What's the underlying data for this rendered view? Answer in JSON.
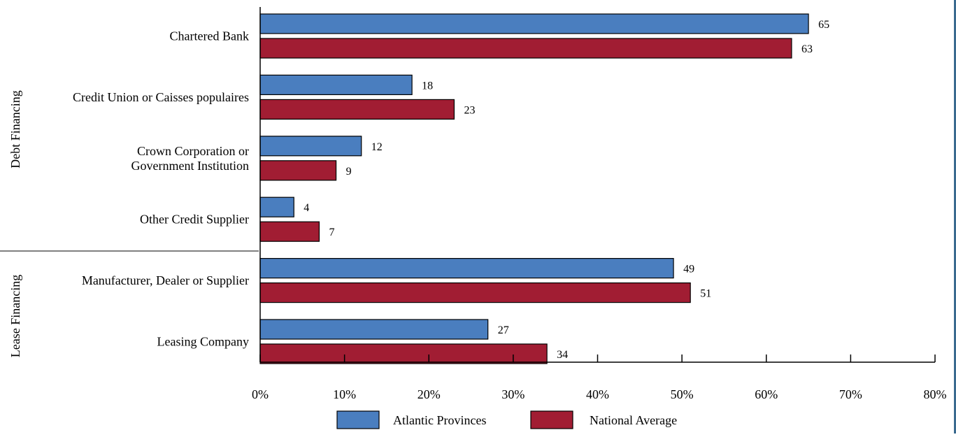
{
  "chart_data": {
    "type": "bar",
    "orientation": "horizontal",
    "groups": [
      {
        "label": "Debt Financing",
        "categories": [
          "Chartered Bank",
          "Credit Union or Caisses populaires",
          "Crown Corporation or Government Institution",
          "Other Credit Supplier"
        ]
      },
      {
        "label": "Lease Financing",
        "categories": [
          "Manufacturer, Dealer or Supplier",
          "Leasing Company"
        ]
      }
    ],
    "categories": [
      [
        "Chartered Bank"
      ],
      [
        "Credit Union or Caisses populaires"
      ],
      [
        "Crown Corporation or",
        "Government Institution"
      ],
      [
        "Other Credit Supplier"
      ],
      [
        "Manufacturer, Dealer or Supplier"
      ],
      [
        "Leasing Company"
      ]
    ],
    "series": [
      {
        "name": "Atlantic Provinces",
        "color": "#4a7ebf",
        "values": [
          65,
          18,
          12,
          4,
          49,
          27
        ]
      },
      {
        "name": "National Average",
        "color": "#a11d33",
        "values": [
          63,
          23,
          9,
          7,
          51,
          34
        ]
      }
    ],
    "xlim": [
      0,
      80
    ],
    "xticks": [
      0,
      10,
      20,
      30,
      40,
      50,
      60,
      70,
      80
    ],
    "xtick_labels": [
      "0%",
      "10%",
      "20%",
      "30%",
      "40%",
      "50%",
      "60%",
      "70%",
      "80%"
    ],
    "legend_position": "bottom",
    "grid": false
  }
}
